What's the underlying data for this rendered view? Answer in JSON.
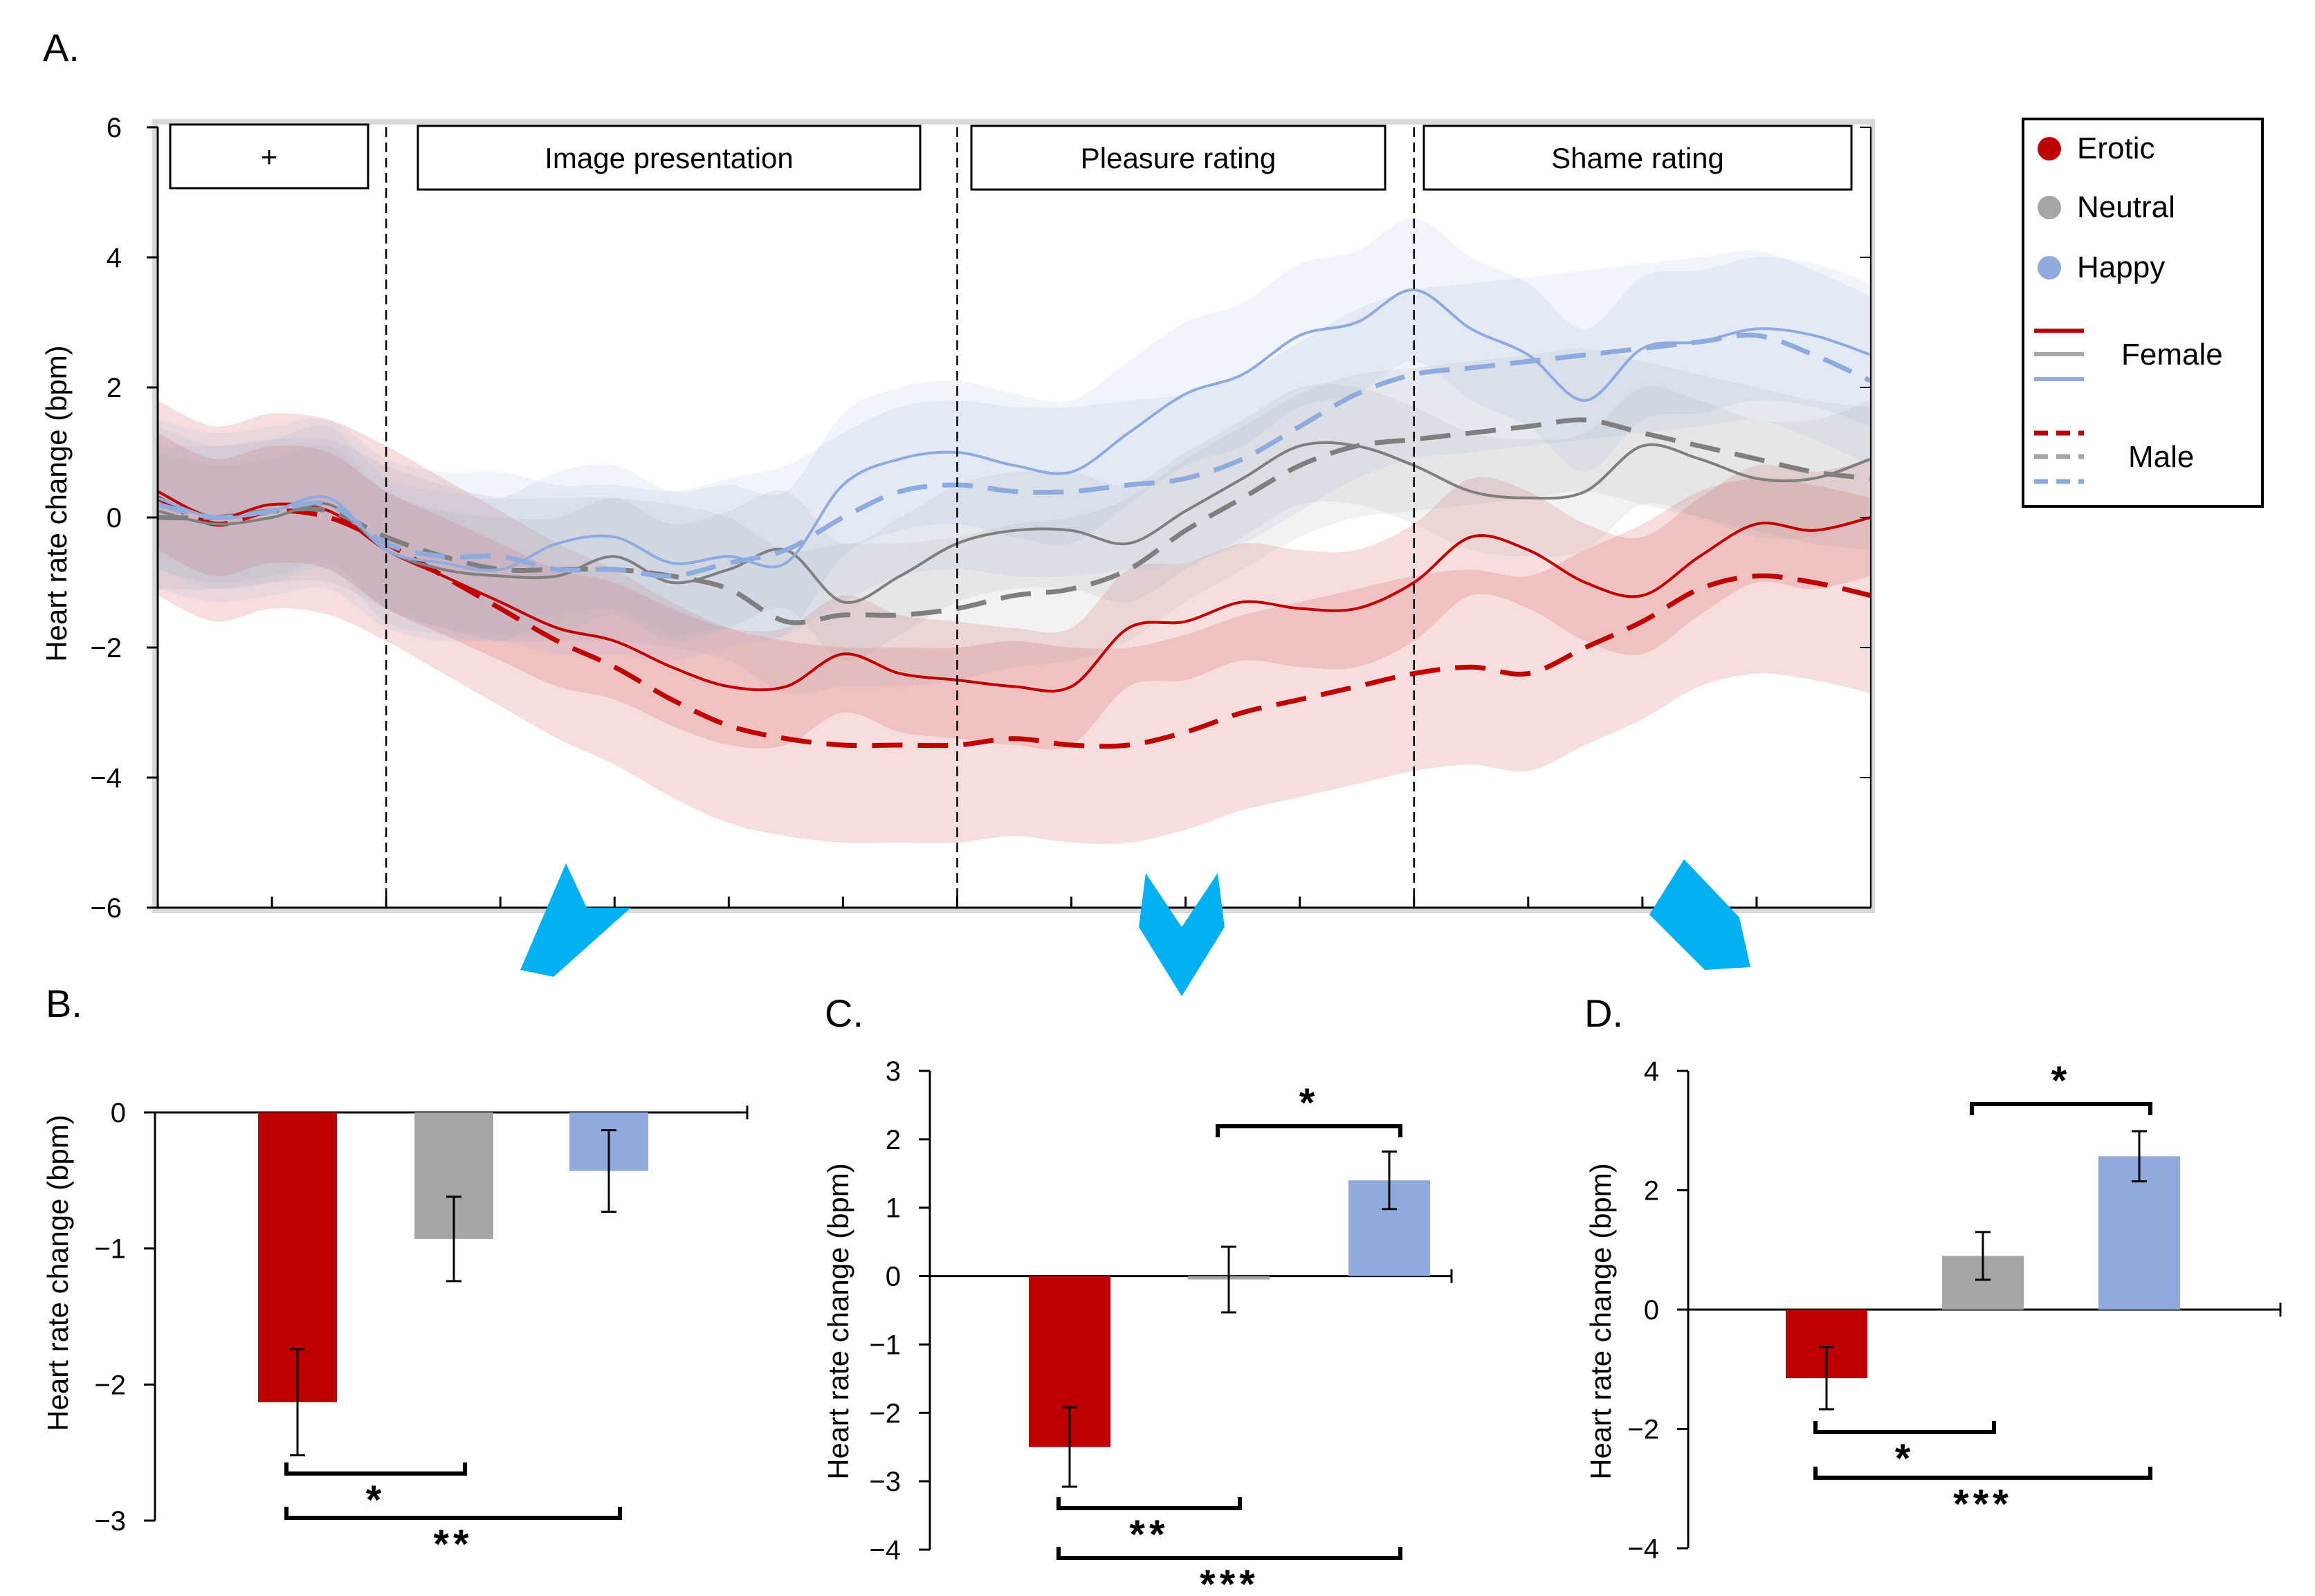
{
  "colors": {
    "erotic": "#c00000",
    "neutral": "#a5a5a5",
    "happy": "#8faadc",
    "neutral_line": "#7f7f7f",
    "arrow": "#00b0f0"
  },
  "legend": {
    "erotic": "Erotic",
    "neutral": "Neutral",
    "happy": "Happy",
    "female": "Female",
    "male": "Male"
  },
  "chart_data": [
    {
      "id": "A",
      "panel_label": "A.",
      "type": "line",
      "ylabel": "Heart rate change (bpm)",
      "xlabel": "",
      "ylim": [
        -6,
        6
      ],
      "yticks": [
        6,
        4,
        2,
        0,
        -2,
        -4,
        -6
      ],
      "ytick_labels": [
        "6",
        "4",
        "2",
        "0",
        "−2",
        "−4",
        "−6"
      ],
      "xlim": [
        0,
        15
      ],
      "phases": [
        {
          "label": "+",
          "start": 0,
          "end": 2
        },
        {
          "label": "Image presentation",
          "start": 2,
          "end": 7
        },
        {
          "label": "Pleasure rating",
          "start": 7,
          "end": 11
        },
        {
          "label": "Shame rating",
          "start": 11,
          "end": 15
        }
      ],
      "phase_boundaries": [
        2,
        7,
        11
      ],
      "x": [
        0,
        0.5,
        1,
        1.5,
        2,
        2.5,
        3,
        3.5,
        4,
        4.5,
        5,
        5.5,
        6,
        6.5,
        7,
        7.5,
        8,
        8.5,
        9,
        9.5,
        10,
        10.5,
        11,
        11.5,
        12,
        12.5,
        13,
        13.5,
        14,
        14.5,
        15
      ],
      "series": [
        {
          "name": "Erotic Female",
          "group": "erotic",
          "sex": "female",
          "values": [
            0.4,
            0.0,
            0.2,
            0.1,
            -0.5,
            -0.9,
            -1.3,
            -1.7,
            -1.9,
            -2.3,
            -2.6,
            -2.6,
            -2.1,
            -2.4,
            -2.5,
            -2.6,
            -2.6,
            -1.7,
            -1.6,
            -1.3,
            -1.4,
            -1.4,
            -1.0,
            -0.3,
            -0.5,
            -1.0,
            -1.2,
            -0.6,
            -0.1,
            -0.2,
            0.0
          ],
          "band": 0.9
        },
        {
          "name": "Erotic Male",
          "group": "erotic",
          "sex": "male",
          "values": [
            0.3,
            -0.1,
            0.1,
            0.0,
            -0.4,
            -0.9,
            -1.4,
            -1.9,
            -2.3,
            -2.8,
            -3.2,
            -3.4,
            -3.5,
            -3.5,
            -3.5,
            -3.4,
            -3.5,
            -3.5,
            -3.3,
            -3.0,
            -2.8,
            -2.6,
            -2.4,
            -2.3,
            -2.4,
            -2.0,
            -1.6,
            -1.1,
            -0.9,
            -1.0,
            -1.2
          ],
          "band": 1.5
        },
        {
          "name": "Neutral Female",
          "group": "neutral",
          "sex": "female",
          "values": [
            0.1,
            -0.1,
            0.0,
            0.2,
            -0.5,
            -0.8,
            -0.9,
            -0.9,
            -0.6,
            -1.0,
            -0.8,
            -0.5,
            -1.3,
            -0.9,
            -0.4,
            -0.2,
            -0.2,
            -0.4,
            0.1,
            0.6,
            1.1,
            1.1,
            0.8,
            0.4,
            0.3,
            0.4,
            1.1,
            0.9,
            0.6,
            0.6,
            0.9
          ],
          "band": 0.9
        },
        {
          "name": "Neutral Male",
          "group": "neutral",
          "sex": "male",
          "values": [
            0.0,
            0.0,
            0.1,
            0.1,
            -0.3,
            -0.6,
            -0.8,
            -0.8,
            -0.8,
            -0.9,
            -1.1,
            -1.6,
            -1.5,
            -1.5,
            -1.4,
            -1.2,
            -1.1,
            -0.8,
            -0.2,
            0.3,
            0.8,
            1.1,
            1.2,
            1.3,
            1.4,
            1.5,
            1.3,
            1.1,
            0.9,
            0.7,
            0.6
          ],
          "band": 1.1
        },
        {
          "name": "Happy Female",
          "group": "happy",
          "sex": "female",
          "values": [
            0.3,
            0.0,
            0.1,
            0.3,
            -0.5,
            -0.7,
            -0.8,
            -0.4,
            -0.3,
            -0.7,
            -0.6,
            -0.7,
            0.5,
            0.9,
            1.0,
            0.8,
            0.7,
            1.3,
            1.9,
            2.2,
            2.8,
            3.0,
            3.5,
            2.9,
            2.5,
            1.8,
            2.6,
            2.7,
            2.9,
            2.8,
            2.5
          ],
          "band": 1.1
        },
        {
          "name": "Happy Male",
          "group": "happy",
          "sex": "male",
          "values": [
            0.2,
            0.0,
            0.1,
            0.2,
            -0.4,
            -0.6,
            -0.6,
            -0.8,
            -0.8,
            -0.9,
            -0.7,
            -0.5,
            0.0,
            0.4,
            0.5,
            0.4,
            0.4,
            0.5,
            0.6,
            0.9,
            1.4,
            1.9,
            2.2,
            2.3,
            2.4,
            2.5,
            2.6,
            2.7,
            2.8,
            2.5,
            2.1
          ],
          "band": 1.3
        }
      ]
    },
    {
      "id": "B",
      "panel_label": "B.",
      "type": "bar",
      "ylabel": "Heart rate change (bpm)",
      "xlabel": "",
      "ylim": [
        -3,
        0
      ],
      "yticks": [
        0,
        -1,
        -2,
        -3
      ],
      "ytick_labels": [
        "0",
        "−1",
        "−2",
        "−3"
      ],
      "categories": [
        "Erotic",
        "Neutral",
        "Happy"
      ],
      "values": [
        -2.13,
        -0.93,
        -0.43
      ],
      "errors": [
        0.39,
        0.31,
        0.3
      ],
      "significance": [
        {
          "from": 0,
          "to": 1,
          "label": "*"
        },
        {
          "from": 0,
          "to": 2,
          "label": "**"
        }
      ]
    },
    {
      "id": "C",
      "panel_label": "C.",
      "type": "bar",
      "ylabel": "Heart rate change (bpm)",
      "xlabel": "",
      "ylim": [
        -4,
        3
      ],
      "yticks": [
        3,
        2,
        1,
        0,
        -1,
        -2,
        -3,
        -4
      ],
      "ytick_labels": [
        "3",
        "2",
        "1",
        "0",
        "−1",
        "−2",
        "−3",
        "−4"
      ],
      "categories": [
        "Erotic",
        "Neutral",
        "Happy"
      ],
      "values": [
        -2.5,
        -0.05,
        1.4
      ],
      "errors": [
        0.58,
        0.48,
        0.42
      ],
      "significance": [
        {
          "from": 1,
          "to": 2,
          "label": "*"
        },
        {
          "from": 0,
          "to": 1,
          "label": "**"
        },
        {
          "from": 0,
          "to": 2,
          "label": "***"
        }
      ]
    },
    {
      "id": "D",
      "panel_label": "D.",
      "type": "bar",
      "ylabel": "Heart rate change (bpm)",
      "xlabel": "",
      "ylim": [
        -4,
        4
      ],
      "yticks": [
        4,
        2,
        0,
        -2,
        -4
      ],
      "ytick_labels": [
        "4",
        "2",
        "0",
        "−2",
        "−4"
      ],
      "categories": [
        "Erotic",
        "Neutral",
        "Happy"
      ],
      "values": [
        -1.15,
        0.9,
        2.57
      ],
      "errors": [
        0.52,
        0.4,
        0.42
      ],
      "significance": [
        {
          "from": 1,
          "to": 2,
          "label": "*"
        },
        {
          "from": 0,
          "to": 1,
          "label": "*"
        },
        {
          "from": 0,
          "to": 2,
          "label": "***"
        }
      ]
    }
  ]
}
